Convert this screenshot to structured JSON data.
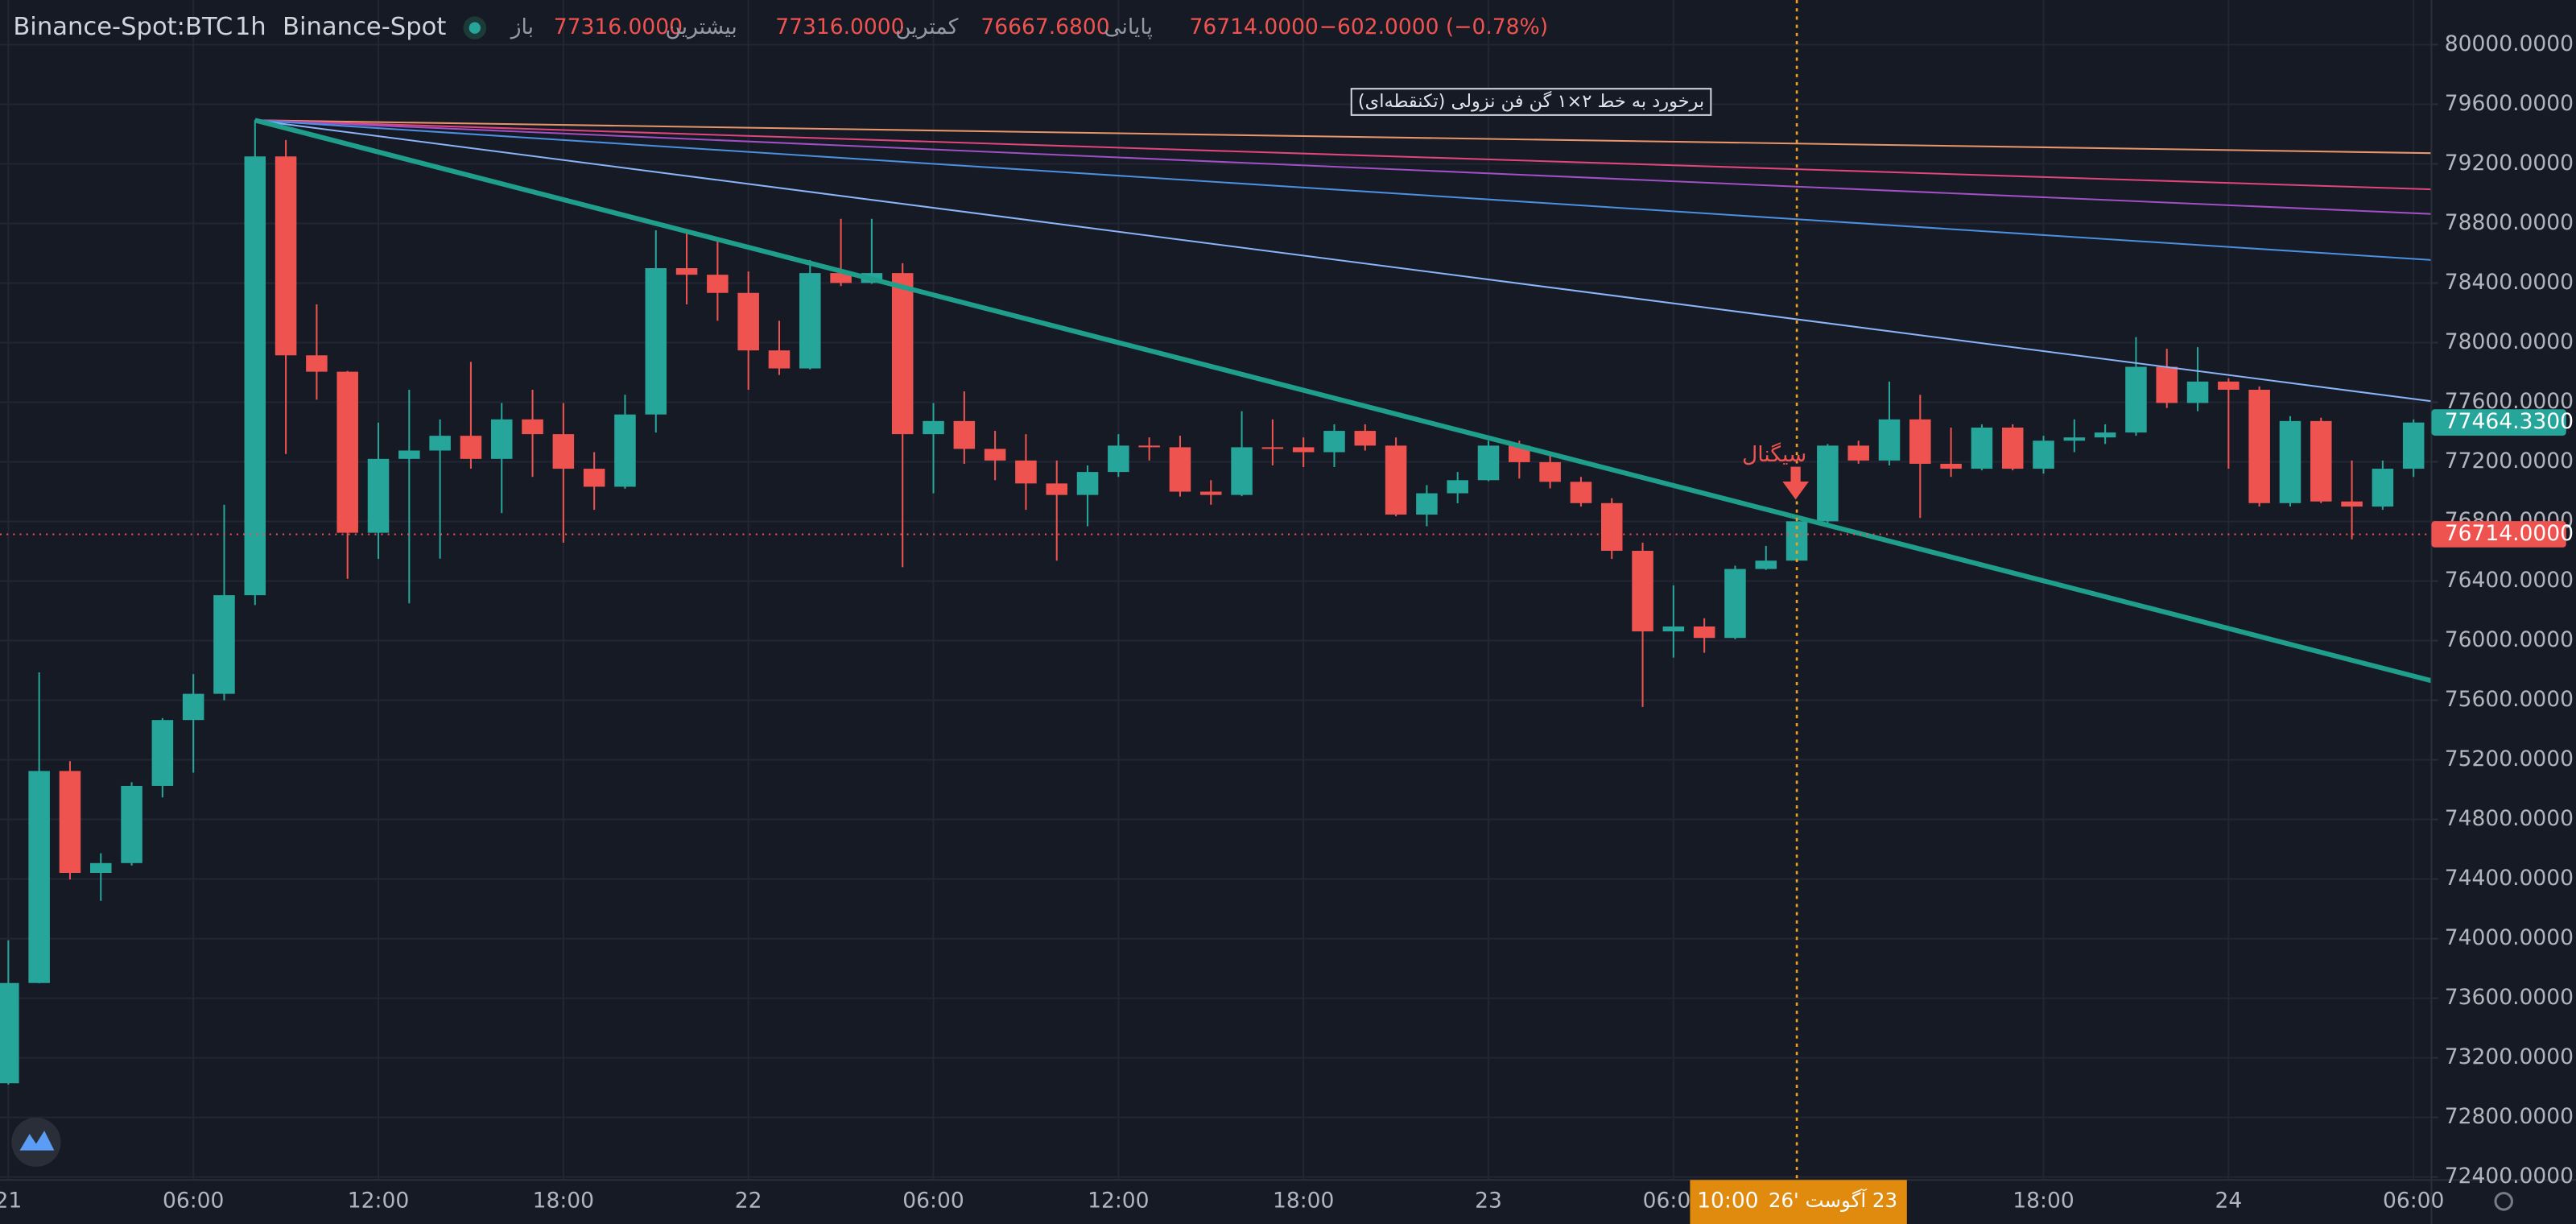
{
  "header": {
    "symbol": "Binance-Spot:BTC",
    "interval": "1h",
    "exchange": "Binance-Spot",
    "ohlc": [
      {
        "label": "باز",
        "value": "77316.0000"
      },
      {
        "label": "بیشترین",
        "value": "77316.0000"
      },
      {
        "label": "کمترین",
        "value": "76667.6800"
      },
      {
        "label": "پایانی",
        "value": "76714.0000"
      }
    ],
    "change": "−602.0000 (−0.78%)"
  },
  "chart_data": {
    "type": "candlestick",
    "open": [
      73029,
      73702,
      75125,
      74441,
      74507,
      75025,
      75467,
      75643,
      76305,
      79250,
      77915,
      77805,
      76724,
      77220,
      77276,
      77375,
      77220,
      77485,
      77386,
      77154,
      77033,
      77518,
      78500,
      78456,
      78334,
      77948,
      77827,
      78467,
      78401,
      78467,
      77386,
      77474,
      77287,
      77209,
      77055,
      76978,
      77132,
      77309,
      77298,
      77000,
      76978,
      77298,
      77298,
      77265,
      77408,
      77309,
      76846,
      76989,
      77077,
      77309,
      77198,
      77066,
      76923,
      76603,
      76062,
      76095,
      76018,
      76481,
      76537,
      76801,
      77309,
      77209,
      77485,
      77187,
      77154,
      77430,
      77154,
      77342,
      77364,
      77397,
      77838,
      77595,
      77739,
      77684,
      76923,
      77474,
      76934,
      76900,
      77154
    ],
    "high": [
      73989,
      75787,
      75191,
      74573,
      75050,
      75480,
      75775,
      76912,
      79493,
      79360,
      78257,
      77810,
      77463,
      77684,
      77485,
      77871,
      77595,
      77684,
      77595,
      77265,
      77650,
      78754,
      78732,
      78700,
      78478,
      78147,
      78555,
      78831,
      78831,
      78533,
      77595,
      77673,
      77408,
      77386,
      77209,
      77176,
      77386,
      77364,
      77375,
      77077,
      77540,
      77485,
      77364,
      77452,
      77452,
      77364,
      77044,
      77132,
      77342,
      77342,
      77254,
      77099,
      76956,
      76658,
      76371,
      76150,
      76503,
      76636,
      76846,
      77320,
      77342,
      77739,
      77650,
      77430,
      77452,
      77452,
      77375,
      77485,
      77452,
      78037,
      77959,
      77970,
      77761,
      77706,
      77507,
      77496,
      77209,
      77209,
      77485
    ],
    "low": [
      73020,
      73700,
      74397,
      74253,
      74490,
      74948,
      75114,
      75600,
      76239,
      77253,
      77617,
      76415,
      76548,
      76250,
      76550,
      77154,
      76856,
      77099,
      76658,
      76878,
      77020,
      77397,
      78257,
      78147,
      77684,
      77783,
      77820,
      78380,
      78395,
      76493,
      76989,
      77187,
      77077,
      76878,
      76537,
      76768,
      77099,
      77209,
      76967,
      76912,
      76970,
      77176,
      77165,
      77165,
      77276,
      76835,
      76768,
      76922,
      77070,
      77088,
      77022,
      76900,
      76548,
      75555,
      75886,
      75919,
      76010,
      76475,
      76530,
      76768,
      77187,
      77176,
      76823,
      77099,
      77143,
      77143,
      77121,
      77265,
      77320,
      77375,
      77562,
      77540,
      77154,
      76900,
      76900,
      76923,
      76680,
      76878,
      77099
    ],
    "close": [
      73702,
      75125,
      74441,
      74507,
      75025,
      75467,
      75643,
      76305,
      79250,
      77915,
      77805,
      76724,
      77220,
      77276,
      77375,
      77220,
      77485,
      77386,
      77154,
      77033,
      77518,
      78500,
      78456,
      78334,
      77948,
      77827,
      78467,
      78401,
      78467,
      77386,
      77474,
      77287,
      77209,
      77055,
      76978,
      77132,
      77309,
      77298,
      77000,
      76978,
      77298,
      77287,
      77265,
      77408,
      77309,
      76846,
      76989,
      77077,
      77309,
      77198,
      77066,
      76923,
      76603,
      76062,
      76095,
      76018,
      76481,
      76537,
      76801,
      77309,
      77209,
      77485,
      77187,
      77154,
      77430,
      77154,
      77342,
      77364,
      77397,
      77838,
      77595,
      77739,
      77684,
      76923,
      77474,
      76934,
      76900,
      77154,
      77464
    ],
    "up_color": "#26a69a",
    "down_color": "#ef5350",
    "xlim": [
      -0.27,
      78.58
    ],
    "xticks": [
      {
        "value": 0,
        "label": "21"
      },
      {
        "value": 6,
        "label": "06:00"
      },
      {
        "value": 12,
        "label": "12:00"
      },
      {
        "value": 18,
        "label": "18:00"
      },
      {
        "value": 24,
        "label": "22"
      },
      {
        "value": 30,
        "label": "06:00"
      },
      {
        "value": 36,
        "label": "12:00"
      },
      {
        "value": 42,
        "label": "18:00"
      },
      {
        "value": 48,
        "label": "23"
      },
      {
        "value": 54,
        "label": "06:00"
      },
      {
        "value": 66,
        "label": "18:00"
      },
      {
        "value": 72,
        "label": "24"
      },
      {
        "value": 78,
        "label": "06:00"
      }
    ],
    "ylim": [
      72380,
      80300
    ],
    "yticks": [
      {
        "value": 80000,
        "label": "80000.0000"
      },
      {
        "value": 79600,
        "label": "79600.0000"
      },
      {
        "value": 79200,
        "label": "79200.0000"
      },
      {
        "value": 78800,
        "label": "78800.0000"
      },
      {
        "value": 78400,
        "label": "78400.0000"
      },
      {
        "value": 78000,
        "label": "78000.0000"
      },
      {
        "value": 77600,
        "label": "77600.0000"
      },
      {
        "value": 77200,
        "label": "77200.0000"
      },
      {
        "value": 76800,
        "label": "76800.0000"
      },
      {
        "value": 76400,
        "label": "76400.0000"
      },
      {
        "value": 76000,
        "label": "76000.0000"
      },
      {
        "value": 75600,
        "label": "75600.0000"
      },
      {
        "value": 75200,
        "label": "75200.0000"
      },
      {
        "value": 74800,
        "label": "74800.0000"
      },
      {
        "value": 74400,
        "label": "74400.0000"
      },
      {
        "value": 74000,
        "label": "74000.0000"
      },
      {
        "value": 73600,
        "label": "73600.0000"
      },
      {
        "value": 73200,
        "label": "73200.0000"
      },
      {
        "value": 72800,
        "label": "72800.0000"
      },
      {
        "value": 72400,
        "label": "72400.0000"
      }
    ],
    "grid": true,
    "trendlines": [
      {
        "color": "#e9956a",
        "width": 1,
        "start": {
          "x": 8,
          "y": 79493
        },
        "end": {
          "x": 78.58,
          "y": 79272
        }
      },
      {
        "color": "#e0457b",
        "width": 1,
        "start": {
          "x": 8,
          "y": 79493
        },
        "end": {
          "x": 78.58,
          "y": 79029
        }
      },
      {
        "color": "#a04fc4",
        "width": 1,
        "start": {
          "x": 8,
          "y": 79493
        },
        "end": {
          "x": 78.58,
          "y": 78864
        }
      },
      {
        "color": "#4b8fe0",
        "width": 1,
        "start": {
          "x": 8,
          "y": 79493
        },
        "end": {
          "x": 78.58,
          "y": 78555
        }
      },
      {
        "color": "#8ab4f8",
        "width": 1,
        "start": {
          "x": 8,
          "y": 79493
        },
        "end": {
          "x": 78.58,
          "y": 77607
        }
      },
      {
        "color": "#1f9e8c",
        "width": 3,
        "start": {
          "x": 8,
          "y": 79493
        },
        "end": {
          "x": 78.58,
          "y": 75731
        }
      }
    ],
    "annotation": "برخورد به خط ۲×۱ گن فن نزولی (تکنقطه‌ای)",
    "signal": "سیگنال",
    "crosshair": {
      "index": 58,
      "time_label": "10:00",
      "date_label": "23 آگوست '26"
    },
    "price_labels": [
      {
        "value": 77464.33,
        "label": "77464.3300",
        "color": "#26a69a"
      },
      {
        "value": 76714,
        "label": "76714.0000",
        "color": "#ef5350"
      }
    ]
  }
}
